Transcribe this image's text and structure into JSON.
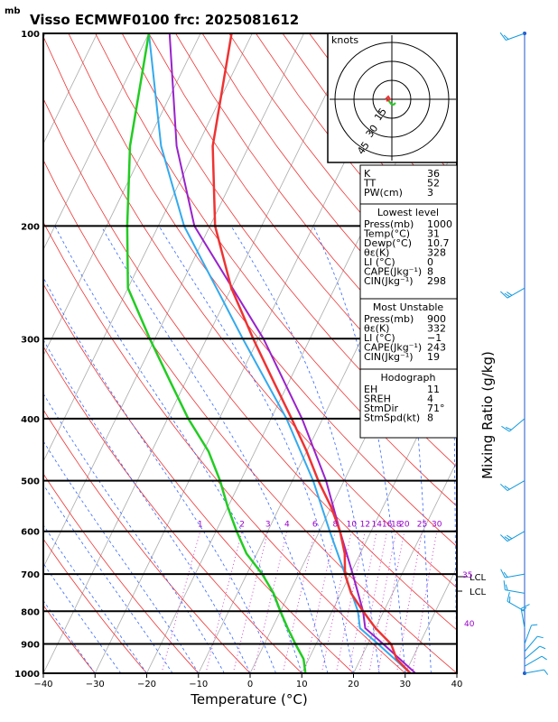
{
  "header": {
    "unit_mb": "mb",
    "title": "Visso ECMWF0100  frc: 2025081612"
  },
  "chart_data": {
    "type": "skew-t",
    "title": "Visso ECMWF0100  frc: 2025081612",
    "xlabel": "Temperature (°C)",
    "ylabel_right": "Mixing Ratio (g/kg)",
    "x_ticks": [
      "−40",
      "−30",
      "−20",
      "−10",
      "0",
      "10",
      "20",
      "30",
      "40"
    ],
    "xlim": [
      -40,
      40
    ],
    "pressure_ticks": [
      "100",
      "200",
      "300",
      "400",
      "500",
      "600",
      "700",
      "800",
      "900",
      "1000"
    ],
    "ylim_mb": [
      1000,
      100
    ],
    "mixing_ratio_labels": [
      "1",
      "2",
      "3",
      "4",
      "6",
      "8",
      "10",
      "12",
      "14",
      "16",
      "18",
      "20",
      "25",
      "30"
    ],
    "adiabat_labels": [
      "35",
      "40"
    ],
    "lcl_labels": [
      "LCL",
      "LCL"
    ],
    "temperature_profile": [
      {
        "p": 1000,
        "t": 31
      },
      {
        "p": 950,
        "t": 27
      },
      {
        "p": 900,
        "t": 24.5
      },
      {
        "p": 850,
        "t": 20
      },
      {
        "p": 800,
        "t": 16
      },
      {
        "p": 750,
        "t": 12
      },
      {
        "p": 700,
        "t": 9
      },
      {
        "p": 650,
        "t": 7
      },
      {
        "p": 600,
        "t": 4
      },
      {
        "p": 550,
        "t": 0
      },
      {
        "p": 500,
        "t": -5
      },
      {
        "p": 450,
        "t": -10
      },
      {
        "p": 400,
        "t": -16
      },
      {
        "p": 350,
        "t": -23
      },
      {
        "p": 300,
        "t": -31
      },
      {
        "p": 250,
        "t": -40
      },
      {
        "p": 200,
        "t": -49
      },
      {
        "p": 150,
        "t": -57
      },
      {
        "p": 100,
        "t": -64
      }
    ],
    "dewpoint_profile": [
      {
        "p": 1000,
        "t": 10.7
      },
      {
        "p": 950,
        "t": 9
      },
      {
        "p": 900,
        "t": 6
      },
      {
        "p": 850,
        "t": 3
      },
      {
        "p": 800,
        "t": 0
      },
      {
        "p": 750,
        "t": -3
      },
      {
        "p": 700,
        "t": -7
      },
      {
        "p": 650,
        "t": -12
      },
      {
        "p": 600,
        "t": -16
      },
      {
        "p": 550,
        "t": -20
      },
      {
        "p": 500,
        "t": -24
      },
      {
        "p": 450,
        "t": -29
      },
      {
        "p": 400,
        "t": -36
      },
      {
        "p": 350,
        "t": -43
      },
      {
        "p": 300,
        "t": -51
      },
      {
        "p": 250,
        "t": -60
      },
      {
        "p": 200,
        "t": -66
      },
      {
        "p": 150,
        "t": -73
      },
      {
        "p": 100,
        "t": -80
      }
    ],
    "parcel_lowest": [
      {
        "p": 1000,
        "t": 31
      },
      {
        "p": 900,
        "t": 22
      },
      {
        "p": 850,
        "t": 17
      },
      {
        "p": 800,
        "t": 15
      },
      {
        "p": 700,
        "t": 9
      },
      {
        "p": 600,
        "t": 2
      },
      {
        "p": 500,
        "t": -6
      },
      {
        "p": 400,
        "t": -17
      },
      {
        "p": 300,
        "t": -33
      },
      {
        "p": 200,
        "t": -55
      },
      {
        "p": 150,
        "t": -67
      },
      {
        "p": 100,
        "t": -80
      }
    ],
    "parcel_unstable": [
      {
        "p": 1000,
        "t": 32
      },
      {
        "p": 900,
        "t": 23
      },
      {
        "p": 850,
        "t": 18
      },
      {
        "p": 800,
        "t": 16
      },
      {
        "p": 700,
        "t": 10.5
      },
      {
        "p": 600,
        "t": 4
      },
      {
        "p": 500,
        "t": -3.5
      },
      {
        "p": 400,
        "t": -14
      },
      {
        "p": 300,
        "t": -29
      },
      {
        "p": 200,
        "t": -53
      },
      {
        "p": 150,
        "t": -64
      },
      {
        "p": 100,
        "t": -76
      }
    ],
    "wind_barbs": [
      {
        "p": 1000,
        "dir": 80,
        "kt": 5
      },
      {
        "p": 975,
        "dir": 60,
        "kt": 5
      },
      {
        "p": 950,
        "dir": 50,
        "kt": 5
      },
      {
        "p": 925,
        "dir": 40,
        "kt": 5
      },
      {
        "p": 900,
        "dir": 20,
        "kt": 5
      },
      {
        "p": 850,
        "dir": 350,
        "kt": 10
      },
      {
        "p": 800,
        "dir": 300,
        "kt": 10
      },
      {
        "p": 750,
        "dir": 280,
        "kt": 10
      },
      {
        "p": 700,
        "dir": 260,
        "kt": 10
      },
      {
        "p": 600,
        "dir": 240,
        "kt": 15
      },
      {
        "p": 500,
        "dir": 240,
        "kt": 10
      },
      {
        "p": 400,
        "dir": 230,
        "kt": 10
      },
      {
        "p": 250,
        "dir": 240,
        "kt": 15
      },
      {
        "p": 100,
        "dir": 250,
        "kt": 10
      }
    ]
  },
  "hodograph": {
    "title": "knots",
    "ring_labels": [
      "15",
      "30",
      "45"
    ]
  },
  "indices": {
    "rows": [
      {
        "label": "K",
        "value": "36"
      },
      {
        "label": "TT",
        "value": "52"
      },
      {
        "label": "PW(cm)",
        "value": "3"
      }
    ]
  },
  "lowest_level": {
    "title": "Lowest level",
    "rows": [
      {
        "label": "Press(mb)",
        "value": "1000"
      },
      {
        "label": "Temp(°C)",
        "value": "31"
      },
      {
        "label": "Dewp(°C)",
        "value": "10.7"
      },
      {
        "label": "θε(K)",
        "value": "328"
      },
      {
        "label": "LI (°C)",
        "value": "0"
      },
      {
        "label": "CAPE(Jkg⁻¹)",
        "value": "8"
      },
      {
        "label": "CIN(Jkg⁻¹)",
        "value": "298"
      }
    ]
  },
  "most_unstable": {
    "title": "Most Unstable",
    "rows": [
      {
        "label": "Press(mb)",
        "value": "900"
      },
      {
        "label": "θε(K)",
        "value": "332"
      },
      {
        "label": "LI (°C)",
        "value": "−1"
      },
      {
        "label": "CAPE(Jkg⁻¹)",
        "value": "243"
      },
      {
        "label": "CIN(Jkg⁻¹)",
        "value": "19"
      }
    ]
  },
  "hodograph_params": {
    "title": "Hodograph",
    "rows": [
      {
        "label": "EH",
        "value": "11"
      },
      {
        "label": "SREH",
        "value": "4"
      },
      {
        "label": "StmDir",
        "value": "71°"
      },
      {
        "label": "StmSpd(kt)",
        "value": "8"
      }
    ]
  },
  "colors": {
    "temperature": "#ee3333",
    "dewpoint": "#22cc22",
    "parcel_lowest": "#33aaee",
    "parcel_unstable": "#9922cc",
    "isotherm": "#aaaaaa",
    "dry_adiabat": "#ee3333",
    "moist_adiabat": "#3366ff",
    "mixing_ratio": "#cc33cc",
    "wind_barb": "#1199dd",
    "barb_pole": "#2255cc"
  }
}
